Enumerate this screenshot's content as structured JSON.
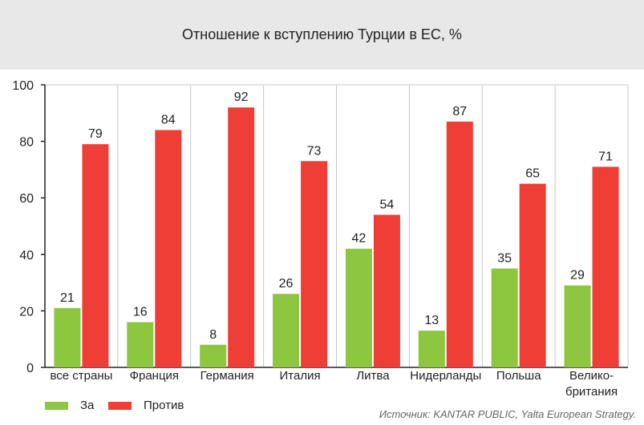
{
  "title": "Отношение к вступлению Турции в ЕС, %",
  "source": "Источник: KANTAR PUBLIC, Yalta European Strategy.",
  "colors": {
    "za": "#8dc63f",
    "protiv": "#ef3e36",
    "header_bg": "#e8e8e8"
  },
  "chart_data": {
    "type": "bar",
    "title": "Отношение к вступлению Турции в ЕС, %",
    "categories": [
      "все страны",
      "Франция",
      "Германия",
      "Италия",
      "Литва",
      "Нидерланды",
      "Польша",
      "Велико- британия"
    ],
    "category_lines": [
      [
        "все страны"
      ],
      [
        "Франция"
      ],
      [
        "Германия"
      ],
      [
        "Италия"
      ],
      [
        "Литва"
      ],
      [
        "Нидерланды"
      ],
      [
        "Польша"
      ],
      [
        "Велико-",
        "британия"
      ]
    ],
    "series": [
      {
        "name": "За",
        "color": "#8dc63f",
        "values": [
          21,
          16,
          8,
          26,
          42,
          13,
          35,
          29
        ]
      },
      {
        "name": "Против",
        "color": "#ef3e36",
        "values": [
          79,
          84,
          92,
          73,
          54,
          87,
          65,
          71
        ]
      }
    ],
    "ylim": [
      0,
      100
    ],
    "yticks": [
      0,
      20,
      40,
      60,
      80,
      100
    ],
    "grid": "vertical separators between categories",
    "legend_position": "bottom-left"
  }
}
